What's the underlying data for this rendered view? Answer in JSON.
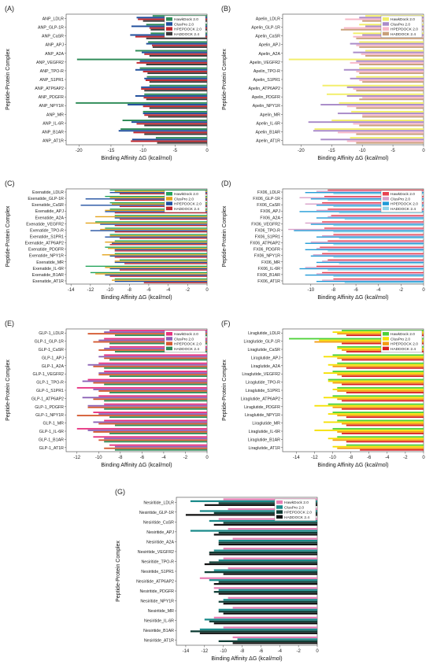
{
  "chart_data": [
    {
      "panel": "(A)",
      "type": "bar",
      "orientation": "horizontal",
      "xlabel": "Binding Affinity ΔG (kcal/mol)",
      "ylabel": "Peptide-Protein Complex",
      "xlim": [
        -22,
        0
      ],
      "xticks": [
        -20,
        -15,
        -10,
        -5,
        0
      ],
      "legend_position": "top-right",
      "categories": [
        "ANP_LDLR",
        "ANP_GLP-1R",
        "ANP_CaSR",
        "ANP_APJ",
        "ANP_A2A",
        "ANP_VEGFR2",
        "ANP_TPO-R",
        "ANP_S1PR1",
        "ANP_ATP6AP2",
        "ANP_PDGFR",
        "ANP_NPY1R",
        "ANP_MR",
        "ANP_IL-6R",
        "ANP_B1AR",
        "ANP_AT1R"
      ],
      "series": [
        {
          "name": "HawkDock 2.0",
          "color": "#2e8b57",
          "values": [
            -8.5,
            -9.5,
            -8.8,
            -9.2,
            -11.2,
            -20.3,
            -10.5,
            -9.4,
            -9.0,
            -9.8,
            -20.5,
            -10.0,
            -13.2,
            -13.5,
            -8.0
          ]
        },
        {
          "name": "ClusPro 2.0",
          "color": "#1f4e9c",
          "values": [
            -11.0,
            -11.8,
            -12.0,
            -9.5,
            -10.2,
            -10.5,
            -11.2,
            -9.8,
            -10.3,
            -11.2,
            -12.4,
            -10.0,
            -11.8,
            -13.8,
            -11.7
          ]
        },
        {
          "name": "HPEPDOCK 2.0",
          "color": "#c0272d",
          "values": [
            -10.8,
            -9.0,
            -11.2,
            -8.6,
            -9.8,
            -11.0,
            -10.0,
            -9.6,
            -10.3,
            -9.9,
            -10.0,
            -9.8,
            -11.0,
            -11.5,
            -11.9
          ]
        },
        {
          "name": "HADDOCK 2.4",
          "color": "#3a3a3a",
          "values": [
            -10.0,
            -8.8,
            -9.5,
            -8.5,
            -9.0,
            -9.5,
            -9.3,
            -9.0,
            -9.8,
            -9.5,
            -9.0,
            -9.2,
            -9.8,
            -9.8,
            -7.8
          ]
        }
      ]
    },
    {
      "panel": "(B)",
      "type": "bar",
      "orientation": "horizontal",
      "xlabel": "Binding Affinity ΔG (kcal/mol)",
      "ylabel": "Peptide-Protein Complex",
      "xlim": [
        -23,
        0
      ],
      "xticks": [
        -20,
        -15,
        -10,
        -5,
        0
      ],
      "legend_position": "top-right",
      "categories": [
        "Apelin_LDLR",
        "Apelin_GLP-1R",
        "Apelin_CaSR",
        "Apelin_APJ",
        "Apelin_A2A",
        "Apelin_VEGFR2",
        "Apelin_TPO-R",
        "Apelin_S1PR1",
        "Apelin_ATP6AP2",
        "Apelin_PDGFR",
        "Apelin_NPY1R",
        "Apelin_MR",
        "Apelin_IL-6R",
        "Apelin_B1AR",
        "Apelin_AT1R"
      ],
      "series": [
        {
          "name": "HawkDock 2.0",
          "color": "#f2ee6a",
          "values": [
            -9.5,
            -10.5,
            -11.5,
            -10.5,
            -9.5,
            -22.0,
            -10.5,
            -11.0,
            -16.5,
            -15.8,
            -13.8,
            -11.8,
            -15.0,
            -17.8,
            -12.0
          ]
        },
        {
          "name": "ClusPro 2.0",
          "color": "#a98bc9",
          "values": [
            -10.5,
            -9.5,
            -10.0,
            -12.0,
            -11.5,
            -11.0,
            -13.0,
            -12.0,
            -12.5,
            -12.5,
            -16.8,
            -14.0,
            -18.8,
            -18.0,
            -16.8
          ]
        },
        {
          "name": "HPEPDOCK 2.0",
          "color": "#f7b8c8",
          "values": [
            -12.8,
            -13.0,
            -11.5,
            -11.0,
            -10.2,
            -12.0,
            -11.0,
            -10.5,
            -11.5,
            -10.0,
            -12.5,
            -10.0,
            -11.5,
            -14.0,
            -12.5
          ]
        },
        {
          "name": "HADDOCK 2.4",
          "color": "#c9a07a",
          "values": [
            -10.0,
            -13.5,
            -11.0,
            -10.5,
            -9.5,
            -10.5,
            -10.5,
            -10.0,
            -11.0,
            -10.5,
            -11.0,
            -10.0,
            -10.5,
            -11.0,
            -11.0
          ]
        }
      ]
    },
    {
      "panel": "(C)",
      "type": "bar",
      "orientation": "horizontal",
      "xlabel": "Binding Affinity ΔG (kcal/mol)",
      "ylabel": "Peptide-Protein Complex",
      "xlim": [
        -14.5,
        0
      ],
      "xticks": [
        -14,
        -12,
        -10,
        -8,
        -6,
        -4,
        -2,
        0
      ],
      "legend_position": "top-right",
      "categories": [
        "Exenatide_LDLR",
        "Exenatide_GLP-1R",
        "Exenatide_CaSR",
        "Exenatide_APJ",
        "Exenatide_A2A",
        "Exenatide_VEGFR2",
        "Exenatide_TPO-R",
        "Exenatide_S1PR1",
        "Exenatide_ATP6AP2",
        "Exenatide_PDGFR",
        "Exenatide_NPY1R",
        "Exenatide_MR",
        "Exenatide_IL-6R",
        "Exenatide_B1AR",
        "Exenatide_AT1R"
      ],
      "series": [
        {
          "name": "HawkDock 2.0",
          "color": "#22a35a",
          "values": [
            -10.0,
            -10.5,
            -10.0,
            -10.0,
            -9.5,
            -11.5,
            -10.5,
            -10.0,
            -9.5,
            -10.5,
            -9.5,
            -9.0,
            -12.5,
            -12.0,
            -9.5
          ]
        },
        {
          "name": "ClusPro 2.0",
          "color": "#e3a21a",
          "values": [
            -9.5,
            -10.0,
            -9.8,
            -10.5,
            -11.5,
            -12.5,
            -11.0,
            -10.0,
            -10.5,
            -10.2,
            -10.8,
            -9.5,
            -10.5,
            -11.5,
            -9.8
          ]
        },
        {
          "name": "HPEPDOCK 2.0",
          "color": "#1f4fa0",
          "values": [
            -10.0,
            -12.5,
            -13.0,
            -10.5,
            -9.5,
            -11.0,
            -12.0,
            -10.5,
            -9.8,
            -9.5,
            -10.0,
            -9.5,
            -10.0,
            -10.5,
            -9.5
          ]
        },
        {
          "name": "HADDOCK 2.4",
          "color": "#c0272d",
          "values": [
            -9.0,
            -9.5,
            -9.0,
            -9.5,
            -9.0,
            -9.5,
            -9.5,
            -9.0,
            -10.0,
            -9.5,
            -9.5,
            -8.5,
            -9.0,
            -10.0,
            -6.5
          ]
        }
      ]
    },
    {
      "panel": "(D)",
      "type": "bar",
      "orientation": "horizontal",
      "xlabel": "Binding Affinity ΔG (kcal/mol)",
      "ylabel": "Peptide-Protein Complex",
      "xlim": [
        -12.5,
        0
      ],
      "xticks": [
        -10,
        -8,
        -6,
        -4,
        -2,
        0
      ],
      "legend_position": "top-right",
      "categories": [
        "FX06_LDLR",
        "FX06_GLP-1R",
        "FX06_CaSR",
        "FX06_APJ",
        "FX06_A2A",
        "FX06_VEGFR2",
        "FX06_TPO-R",
        "FX06_S1PR1",
        "FX06_ATP6AP2",
        "FX06_PDGFR",
        "FX06_NPY1R",
        "FX06_MR",
        "FX06_IL-6R",
        "FX06_B1AR",
        "FX06_AT1R"
      ],
      "series": [
        {
          "name": "HawkDock 2.0",
          "color": "#e8414f",
          "values": [
            -8.5,
            -8.8,
            -9.0,
            -8.5,
            -8.2,
            -9.0,
            -8.8,
            -8.0,
            -8.5,
            -9.2,
            -9.0,
            -8.5,
            -9.5,
            -9.0,
            -8.0
          ]
        },
        {
          "name": "ClusPro 2.0",
          "color": "#d8a0c8",
          "values": [
            -9.5,
            -11.0,
            -10.5,
            -9.5,
            -8.5,
            -10.5,
            -12.0,
            -9.0,
            -10.0,
            -9.5,
            -9.8,
            -9.0,
            -10.5,
            -9.5,
            -9.0
          ]
        },
        {
          "name": "HPEPDOCK 2.0",
          "color": "#1f9ad6",
          "values": [
            -10.5,
            -10.0,
            -9.5,
            -11.0,
            -9.5,
            -10.0,
            -11.5,
            -9.5,
            -10.5,
            -10.5,
            -10.0,
            -9.5,
            -11.0,
            -10.5,
            -9.5
          ]
        },
        {
          "name": "HADDOCK 2.4",
          "color": "#8fd3e8",
          "values": [
            -8.0,
            -8.5,
            -8.0,
            -7.5,
            -7.0,
            -8.0,
            -8.0,
            -7.5,
            -8.0,
            -8.5,
            -8.0,
            -7.5,
            -8.5,
            -8.0,
            -7.0
          ]
        }
      ]
    },
    {
      "panel": "(E)",
      "type": "bar",
      "orientation": "horizontal",
      "xlabel": "Binding Affinity ΔG (kcal/mol)",
      "ylabel": "Peptide-Protein Complex",
      "xlim": [
        -13,
        0
      ],
      "xticks": [
        -12,
        -10,
        -8,
        -6,
        -4,
        -2,
        0
      ],
      "legend_position": "top-right",
      "categories": [
        "GLP-1_LDLR",
        "GLP-1_GLP-1R",
        "GLP-1_CaSR",
        "GLP-1_APJ",
        "GLP-1_A2A",
        "GLP-1_VEGFR2",
        "GLP-1_TPO-R",
        "GLP-1_S1PR1",
        "GLP-1_ATP6AP2",
        "GLP-1_PDGFR",
        "GLP-1_NPY1R",
        "GLP-1_MR",
        "GLP-1_IL-6R",
        "GLP-1_B1AR",
        "GLP-1_AT1R"
      ],
      "series": [
        {
          "name": "HawkDock 2.0",
          "color": "#e6307e",
          "values": [
            -9.0,
            -9.5,
            -9.0,
            -9.5,
            -10.0,
            -9.5,
            -11.0,
            -12.0,
            -10.0,
            -9.5,
            -10.5,
            -9.5,
            -12.0,
            -10.5,
            -9.0
          ]
        },
        {
          "name": "ClusPro 2.0",
          "color": "#8a5fb5",
          "values": [
            -9.5,
            -10.0,
            -9.5,
            -10.0,
            -11.0,
            -10.0,
            -11.5,
            -10.5,
            -11.5,
            -11.0,
            -10.0,
            -10.5,
            -11.0,
            -9.5,
            -8.5
          ]
        },
        {
          "name": "HPEPDOCK 2.0",
          "color": "#d4572e",
          "values": [
            -11.0,
            -10.5,
            -10.0,
            -9.5,
            -10.5,
            -10.0,
            -10.5,
            -10.0,
            -10.5,
            -11.0,
            -12.0,
            -10.0,
            -10.5,
            -10.0,
            -9.5
          ]
        },
        {
          "name": "HADDOCK 2.4",
          "color": "#2e8b57",
          "values": [
            -8.5,
            -9.0,
            -8.5,
            -9.0,
            -9.5,
            -9.0,
            -9.5,
            -9.0,
            -9.5,
            -9.5,
            -9.0,
            -8.5,
            -9.0,
            -9.5,
            -8.5
          ]
        }
      ]
    },
    {
      "panel": "(F)",
      "type": "bar",
      "orientation": "horizontal",
      "xlabel": "Binding Affinity ΔG (kcal/mol)",
      "ylabel": "Peptide-Protein Complex",
      "xlim": [
        -15.5,
        0
      ],
      "xticks": [
        -14,
        -12,
        -10,
        -8,
        -6,
        -4,
        -2,
        0
      ],
      "legend_position": "top-right",
      "categories": [
        "Liraglutide_LDLR",
        "Liraglutide_GLP-1R",
        "Liraglutide_CaSR",
        "Liraglutide_APJ",
        "Liraglutide_A2A",
        "Liraglutide_VEGFR2",
        "Liraglutide_TPO-R",
        "Liraglutide_S1PR1",
        "Liraglutide_ATP6AP2",
        "Liraglutide_PDGFR",
        "Liraglutide_NPY1R",
        "Liraglutide_MR",
        "Liraglutide_IL-6R",
        "Liraglutide_B1AR",
        "Liraglutide_AT1R"
      ],
      "series": [
        {
          "name": "HawkDock 2.0",
          "color": "#4cd137",
          "values": [
            -9.0,
            -14.8,
            -9.5,
            -10.0,
            -9.5,
            -10.0,
            -10.5,
            -9.5,
            -10.0,
            -10.5,
            -10.0,
            -9.5,
            -10.0,
            -9.5,
            -8.5
          ]
        },
        {
          "name": "ClusPro 2.0",
          "color": "#f5e000",
          "values": [
            -10.0,
            -11.5,
            -9.5,
            -11.0,
            -10.5,
            -11.0,
            -10.5,
            -10.0,
            -11.0,
            -12.0,
            -10.5,
            -11.0,
            -12.0,
            -10.5,
            -10.0
          ]
        },
        {
          "name": "HPEPDOCK 2.0",
          "color": "#f39c12",
          "values": [
            -9.5,
            -12.0,
            -9.0,
            -9.5,
            -10.0,
            -9.5,
            -10.0,
            -9.5,
            -9.5,
            -10.0,
            -9.5,
            -9.0,
            -9.5,
            -10.0,
            -9.5
          ]
        },
        {
          "name": "HADDOCK 2.4",
          "color": "#d92020",
          "values": [
            -8.5,
            -9.0,
            -8.5,
            -9.0,
            -8.5,
            -9.0,
            -9.0,
            -8.5,
            -9.0,
            -9.0,
            -8.5,
            -8.5,
            -9.0,
            -8.5,
            -7.0
          ]
        }
      ]
    },
    {
      "panel": "(G)",
      "type": "bar",
      "orientation": "horizontal",
      "xlabel": "Binding Affinity ΔG (kcal/mol)",
      "ylabel": "Peptide-Protein Complex",
      "xlim": [
        -15,
        0
      ],
      "xticks": [
        -14,
        -12,
        -10,
        -8,
        -6,
        -4,
        -2,
        0
      ],
      "legend_position": "top-right",
      "categories": [
        "Nesiritide_LDLR",
        "Nesiritide_GLP-1R",
        "Nesiritide_CaSR",
        "Nesiritide_APJ",
        "Nesiritide_A2A",
        "Nesiritide_VEGFR2",
        "Nesiritide_TPO-R",
        "Nesiritide_S1PR1",
        "Nesiritide_ATP6AP2",
        "Nesiritide_PDGFR",
        "Nesiritide_NPY1R",
        "Nesiritide_MR",
        "Nesiritide_IL-6R",
        "Nesiritide_B1AR",
        "Nesiritide_AT1R"
      ],
      "series": [
        {
          "name": "HawkDock 2.0",
          "color": "#e77fb5",
          "values": [
            -10.0,
            -9.5,
            -10.5,
            -9.5,
            -9.0,
            -10.0,
            -10.0,
            -9.5,
            -12.5,
            -11.0,
            -9.5,
            -9.0,
            -11.0,
            -10.0,
            -9.0
          ]
        },
        {
          "name": "ClusPro 2.0",
          "color": "#1a8a8a",
          "values": [
            -13.5,
            -12.5,
            -11.5,
            -13.5,
            -10.5,
            -11.0,
            -10.5,
            -11.0,
            -11.5,
            -10.5,
            -10.0,
            -10.5,
            -12.0,
            -12.5,
            -8.5
          ]
        },
        {
          "name": "HPEPDOCK 2.0",
          "color": "#0d3b33",
          "values": [
            -10.5,
            -11.0,
            -10.0,
            -10.5,
            -10.5,
            -11.5,
            -11.5,
            -12.0,
            -10.5,
            -11.0,
            -10.5,
            -10.5,
            -11.5,
            -13.5,
            -10.5
          ]
        },
        {
          "name": "HADDOCK 2.4",
          "color": "#111111",
          "values": [
            -12.0,
            -14.0,
            -11.0,
            -11.0,
            -10.5,
            -11.5,
            -12.0,
            -10.0,
            -11.0,
            -10.5,
            -10.0,
            -10.0,
            -11.0,
            -12.5,
            -9.0
          ]
        }
      ]
    }
  ]
}
